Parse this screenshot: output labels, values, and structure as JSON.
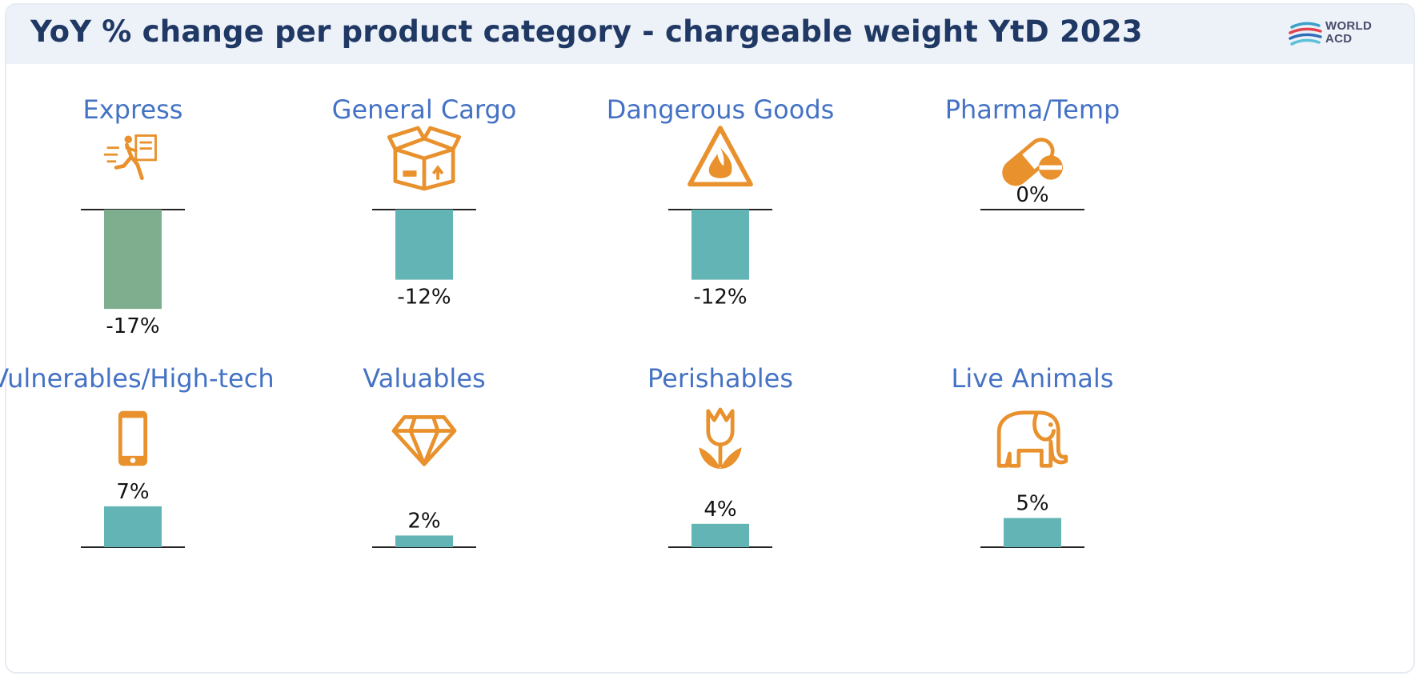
{
  "header": {
    "title": "YoY % change per product category - chargeable weight YtD 2023",
    "logo_line1": "WORLD",
    "logo_line2": "ACD"
  },
  "colors": {
    "header_bg": "#edf1f8",
    "title": "#1f3864",
    "category_label": "#4472c4",
    "icon": "#e8912d",
    "bar_teal": "#63b5b5",
    "bar_green": "#7fae8e",
    "axis_line": "#222222"
  },
  "chart_data": {
    "type": "bar",
    "title": "YoY % change per product category - chargeable weight YtD 2023",
    "unit": "%",
    "layout": "small-multiples 4x2",
    "categories": [
      {
        "name": "Express",
        "value": -17,
        "label": "-17%",
        "icon": "running-courier-icon",
        "color": "#7fae8e"
      },
      {
        "name": "General Cargo",
        "value": -12,
        "label": "-12%",
        "icon": "cardboard-box-icon",
        "color": "#63b5b5"
      },
      {
        "name": "Dangerous Goods",
        "value": -12,
        "label": "-12%",
        "icon": "fire-warning-icon",
        "color": "#63b5b5"
      },
      {
        "name": "Pharma/Temp",
        "value": 0,
        "label": "0%",
        "icon": "pill-capsule-icon",
        "color": "#63b5b5"
      },
      {
        "name": "Vulnerables/High-tech",
        "value": 7,
        "label": "7%",
        "icon": "smartphone-icon",
        "color": "#63b5b5"
      },
      {
        "name": "Valuables",
        "value": 2,
        "label": "2%",
        "icon": "diamond-icon",
        "color": "#63b5b5"
      },
      {
        "name": "Perishables",
        "value": 4,
        "label": "4%",
        "icon": "tulip-icon",
        "color": "#63b5b5"
      },
      {
        "name": "Live Animals",
        "value": 5,
        "label": "5%",
        "icon": "elephant-icon",
        "color": "#63b5b5"
      }
    ]
  }
}
